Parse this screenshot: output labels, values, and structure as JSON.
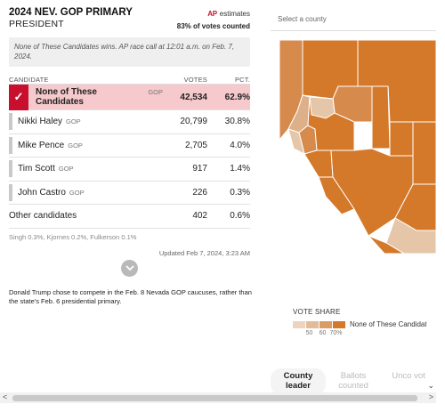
{
  "header": {
    "title": "2024 NEV. GOP PRIMARY",
    "subtitle": "PRESIDENT",
    "ap_logo": "AP",
    "ap_label": "estimates",
    "votes_counted": "83% of votes counted"
  },
  "note": "None of These Candidates wins. AP race call at 12:01 a.m. on Feb. 7, 2024.",
  "table": {
    "col_candidate": "CANDIDATE",
    "col_votes": "VOTES",
    "col_pct": "PCT.",
    "rows": [
      {
        "name": "None of These Candidates",
        "party": "GOP",
        "votes": "42,534",
        "pct": "62.9%",
        "winner": true
      },
      {
        "name": "Nikki Haley",
        "party": "GOP",
        "votes": "20,799",
        "pct": "30.8%"
      },
      {
        "name": "Mike Pence",
        "party": "GOP",
        "votes": "2,705",
        "pct": "4.0%"
      },
      {
        "name": "Tim Scott",
        "party": "GOP",
        "votes": "917",
        "pct": "1.4%"
      },
      {
        "name": "John Castro",
        "party": "GOP",
        "votes": "226",
        "pct": "0.3%"
      }
    ],
    "other": {
      "name": "Other candidates",
      "votes": "402",
      "pct": "0.6%"
    },
    "other_breakdown": "Singh 0.3%, Kjornes 0.2%, Fulkerson 0.1%",
    "check_icon": "✓"
  },
  "updated": "Updated Feb 7, 2024, 3:23 AM",
  "footnote": "Donald Trump chose to compete in the Feb. 8 Nevada GOP caucuses, rather than the state's Feb. 6 presidential primary.",
  "map": {
    "select_placeholder": "Select a county",
    "colors": {
      "light": "#e6c6a8",
      "mid": "#ddb08a",
      "strong": "#d68a4c",
      "dark": "#d4782a",
      "border": "#ffffff"
    }
  },
  "legend": {
    "title": "VOTE SHARE",
    "name": "None of These Candidates",
    "ticks": [
      "50",
      "60",
      "70%"
    ],
    "swatches": [
      "#ecd4bf",
      "#e2bb98",
      "#d99c62",
      "#d4782a"
    ]
  },
  "tabs": [
    {
      "label": "County leader",
      "active": true
    },
    {
      "label": "Ballots counted",
      "active": false
    },
    {
      "label": "Unco vot",
      "active": false
    }
  ],
  "scroll": {
    "left_arrow": "<",
    "right_arrow": ">",
    "down_arrow": "⌄"
  }
}
